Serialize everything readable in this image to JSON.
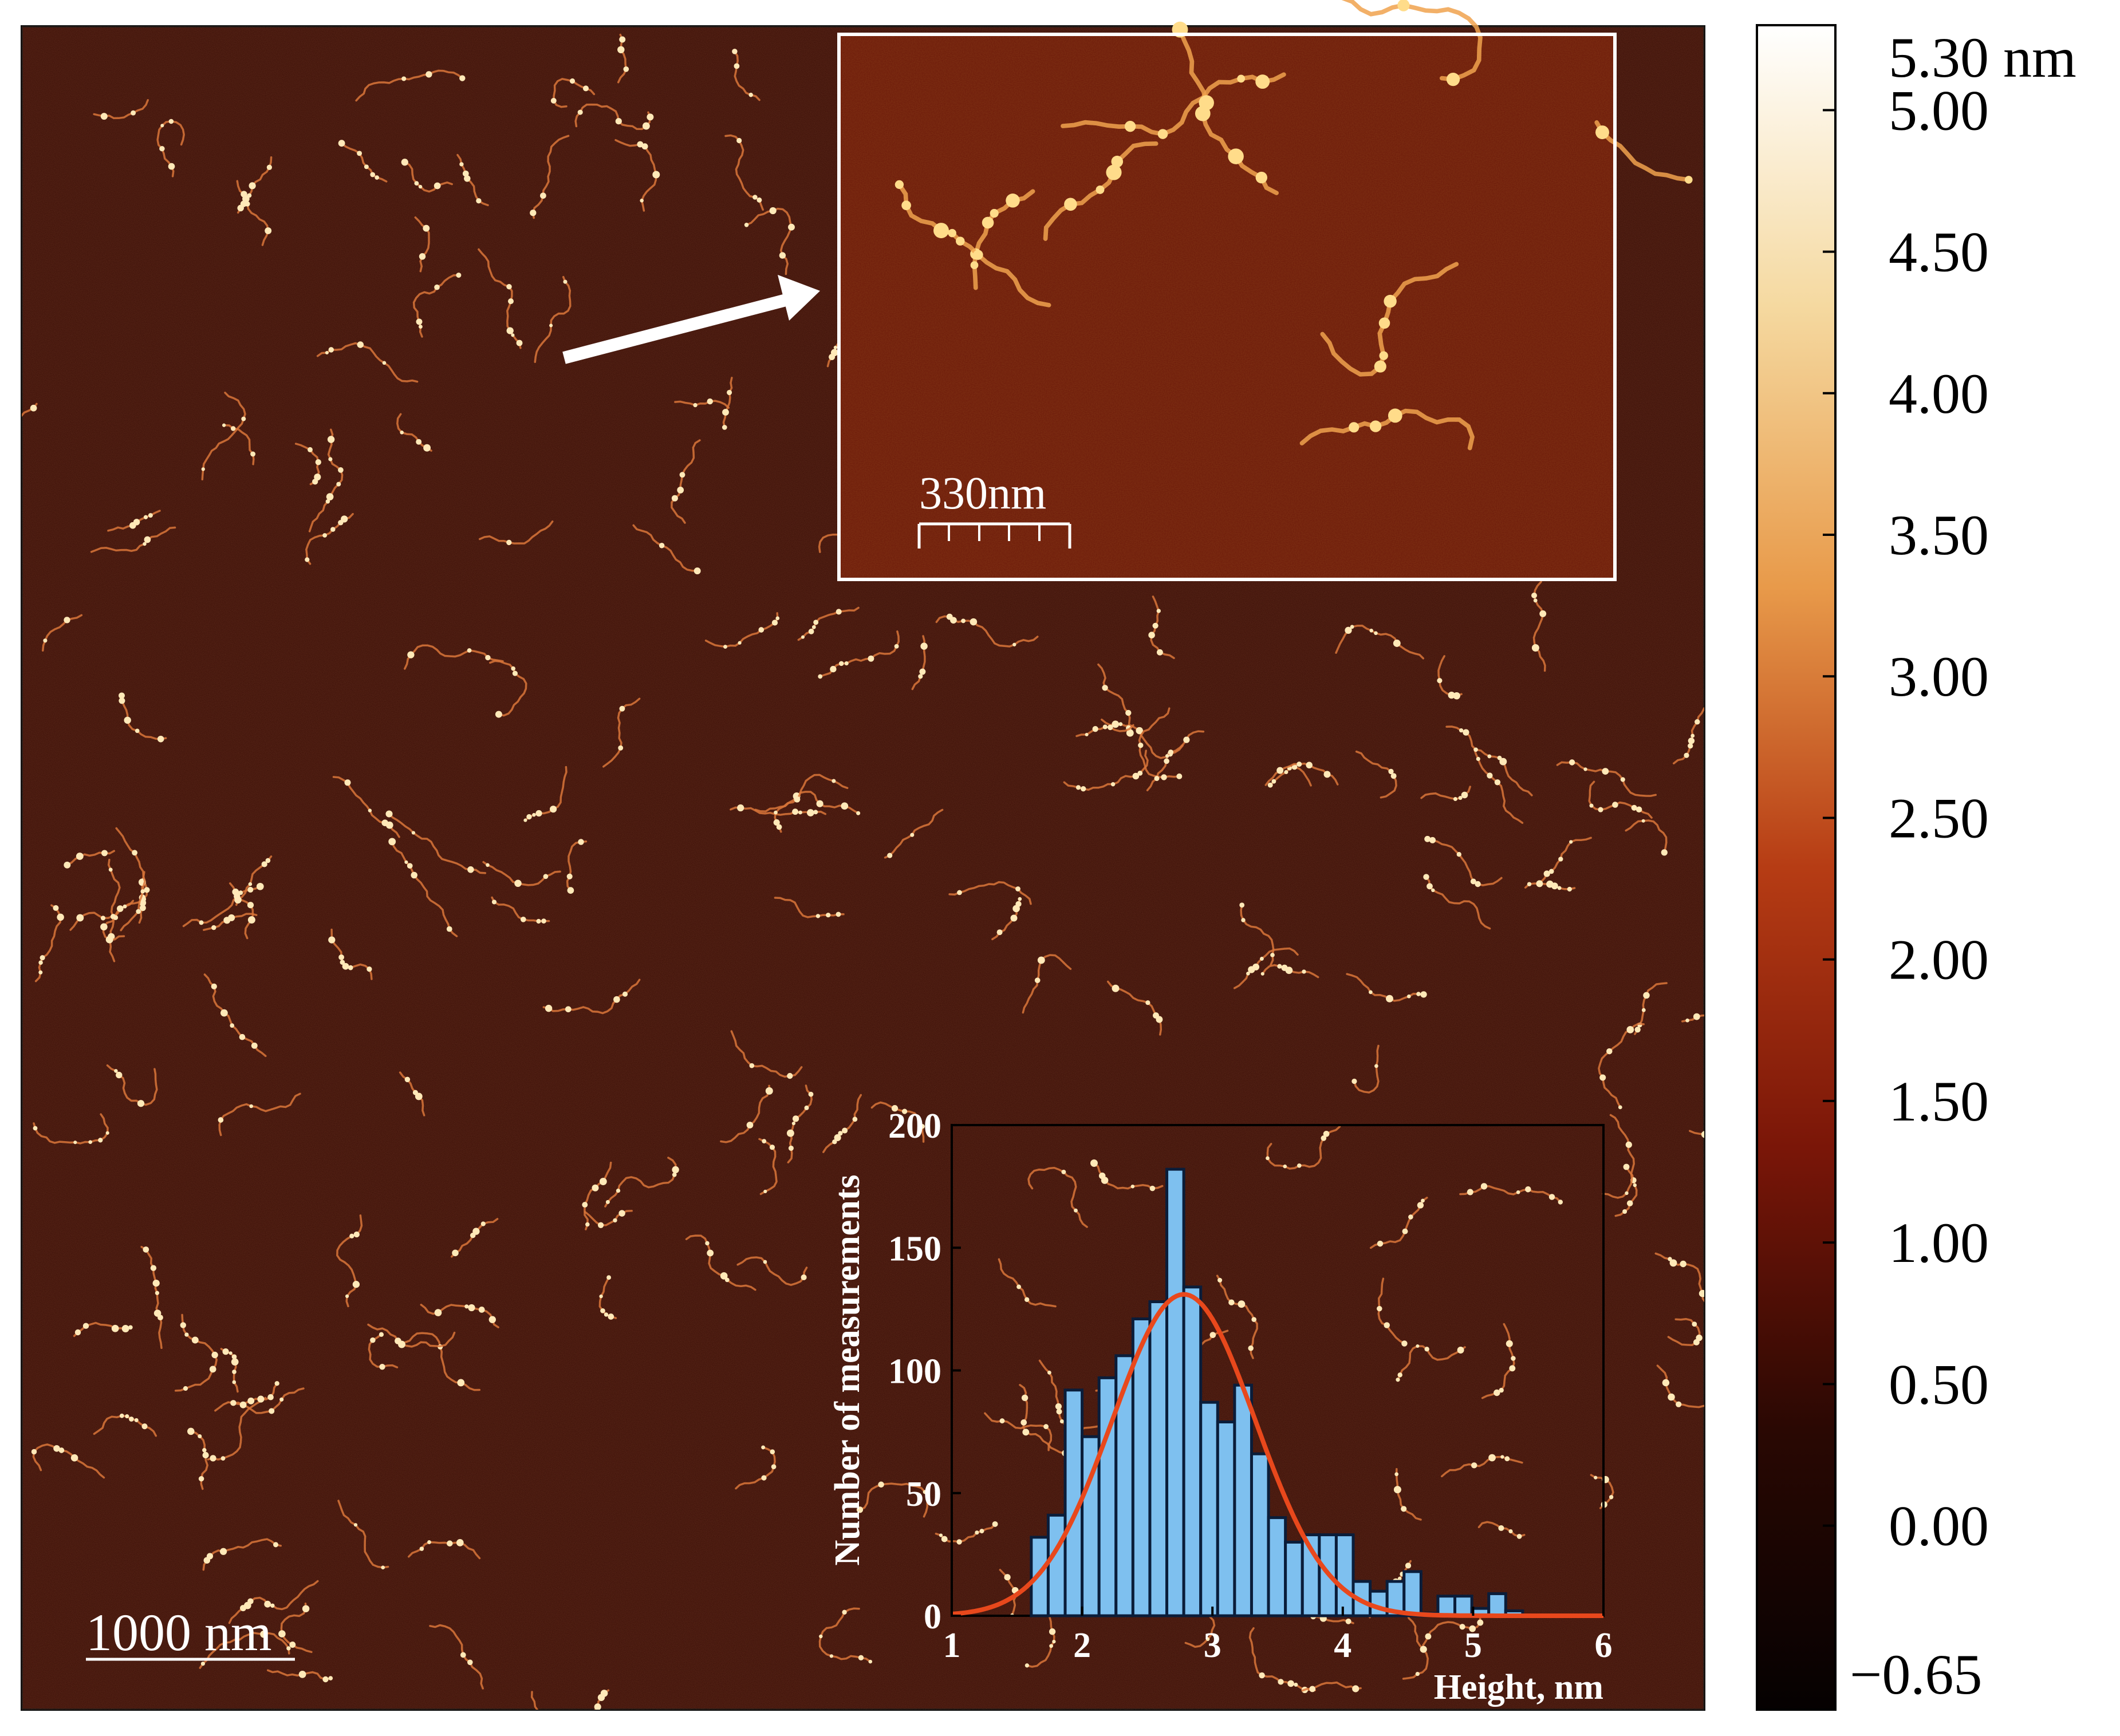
{
  "main_image": {
    "scale_bar_label": "1000 nm"
  },
  "inset_zoom": {
    "scale_bar_label": "330nm"
  },
  "colorbar": {
    "top_label": "5.30 nm",
    "tick_labels": [
      "5.00",
      "4.50",
      "4.00",
      "3.50",
      "3.00",
      "2.50",
      "2.00",
      "1.50",
      "1.00",
      "0.50",
      "0.00"
    ],
    "bottom_label": "−0.65",
    "colors": [
      "#050101",
      "#2a0803",
      "#7a1608",
      "#b63c14",
      "#e89a4a",
      "#f5d9a0",
      "#ffffff"
    ]
  },
  "chart_data": {
    "type": "bar",
    "title": "",
    "xlabel": "Height, nm",
    "ylabel": "Number of measurements",
    "xlim": [
      1,
      6
    ],
    "ylim": [
      0,
      200
    ],
    "xticks": [
      "1",
      "2",
      "3",
      "4",
      "5",
      "6"
    ],
    "yticks": [
      "0",
      "50",
      "100",
      "150",
      "200"
    ],
    "bin_width": 0.13,
    "bins": [
      {
        "x": 1.61,
        "y": 32
      },
      {
        "x": 1.74,
        "y": 41
      },
      {
        "x": 1.87,
        "y": 92
      },
      {
        "x": 2.0,
        "y": 73
      },
      {
        "x": 2.13,
        "y": 97
      },
      {
        "x": 2.26,
        "y": 106
      },
      {
        "x": 2.39,
        "y": 121
      },
      {
        "x": 2.52,
        "y": 128
      },
      {
        "x": 2.65,
        "y": 182
      },
      {
        "x": 2.78,
        "y": 134
      },
      {
        "x": 2.91,
        "y": 87
      },
      {
        "x": 3.04,
        "y": 79
      },
      {
        "x": 3.17,
        "y": 94
      },
      {
        "x": 3.3,
        "y": 66
      },
      {
        "x": 3.43,
        "y": 40
      },
      {
        "x": 3.56,
        "y": 30
      },
      {
        "x": 3.69,
        "y": 33
      },
      {
        "x": 3.82,
        "y": 33
      },
      {
        "x": 3.95,
        "y": 33
      },
      {
        "x": 4.08,
        "y": 14
      },
      {
        "x": 4.21,
        "y": 10
      },
      {
        "x": 4.34,
        "y": 14
      },
      {
        "x": 4.47,
        "y": 18
      },
      {
        "x": 4.6,
        "y": 1
      },
      {
        "x": 4.73,
        "y": 8
      },
      {
        "x": 4.86,
        "y": 8
      },
      {
        "x": 4.99,
        "y": 3
      },
      {
        "x": 5.12,
        "y": 9
      },
      {
        "x": 5.25,
        "y": 2
      }
    ],
    "fit": {
      "type": "gaussian",
      "mean": 2.78,
      "sigma": 0.55,
      "amplitude": 131
    },
    "colors": {
      "bar_fill": "#7ec0ef",
      "bar_edge": "#0a1d3a",
      "fit_line": "#e8481c",
      "axes_text": "#ffffff"
    }
  }
}
